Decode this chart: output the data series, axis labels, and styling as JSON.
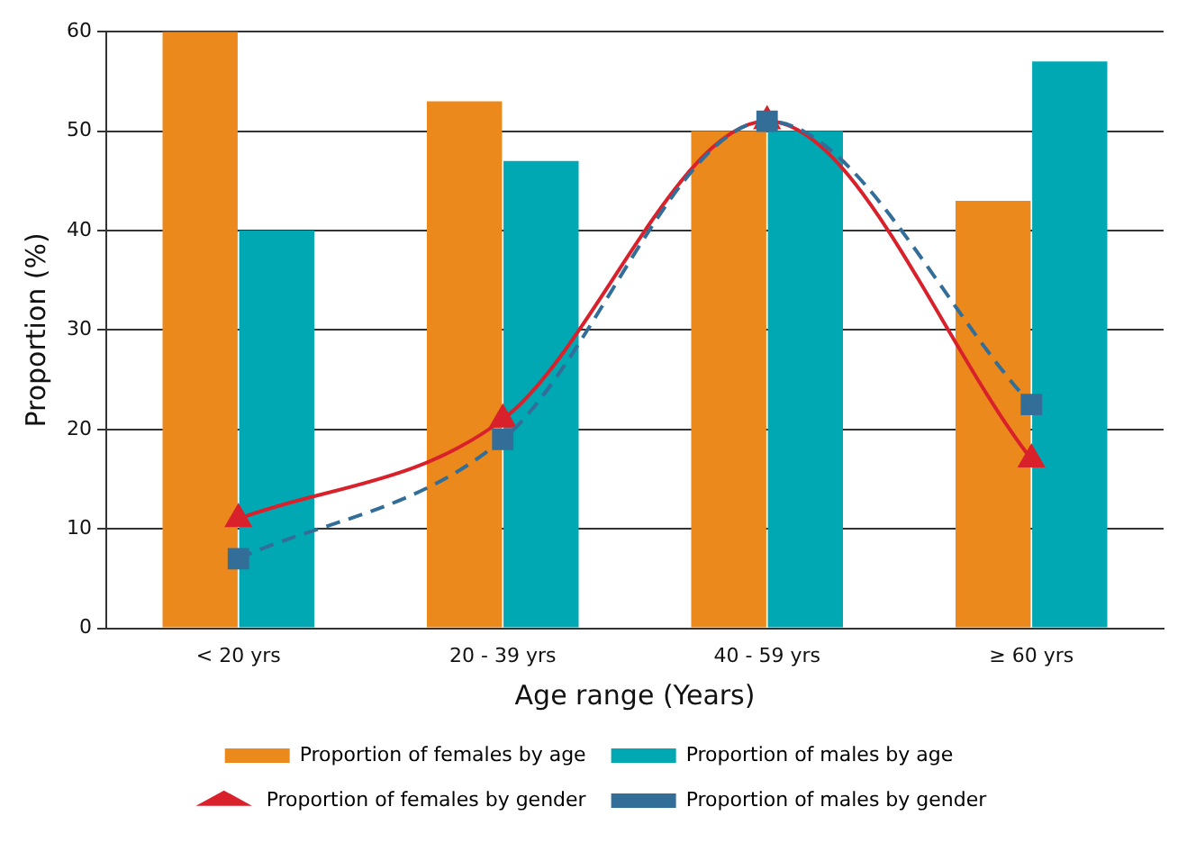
{
  "chart_data": {
    "type": "bar",
    "xlabel": "Age range (Years)",
    "ylabel": "Proportion (%)",
    "categories": [
      "< 20 yrs",
      "20 - 39 yrs",
      "40 - 59 yrs",
      "≥ 60 yrs"
    ],
    "series": [
      {
        "name": "Proportion of females by age",
        "color": "#ec891d",
        "values": [
          60,
          53,
          50,
          43
        ]
      },
      {
        "name": "Proportion of males by age",
        "color": "#00a8b3",
        "values": [
          40,
          47,
          50,
          57
        ]
      },
      {
        "name": "Proportion of females by gender",
        "type": "line",
        "color": "#d9212c",
        "marker": "triangle",
        "line_style": "solid",
        "values": [
          11,
          21,
          51,
          17
        ]
      },
      {
        "name": "Proportion of males by gender",
        "type": "line",
        "color": "#336e99",
        "marker": "square",
        "line_style": "dashed",
        "values": [
          7,
          19,
          51,
          22.5
        ]
      }
    ],
    "ylim": [
      0,
      60
    ],
    "yticks": [
      0,
      10,
      20,
      30,
      40,
      50,
      60
    ],
    "grid": "y",
    "legend": "bottom"
  }
}
